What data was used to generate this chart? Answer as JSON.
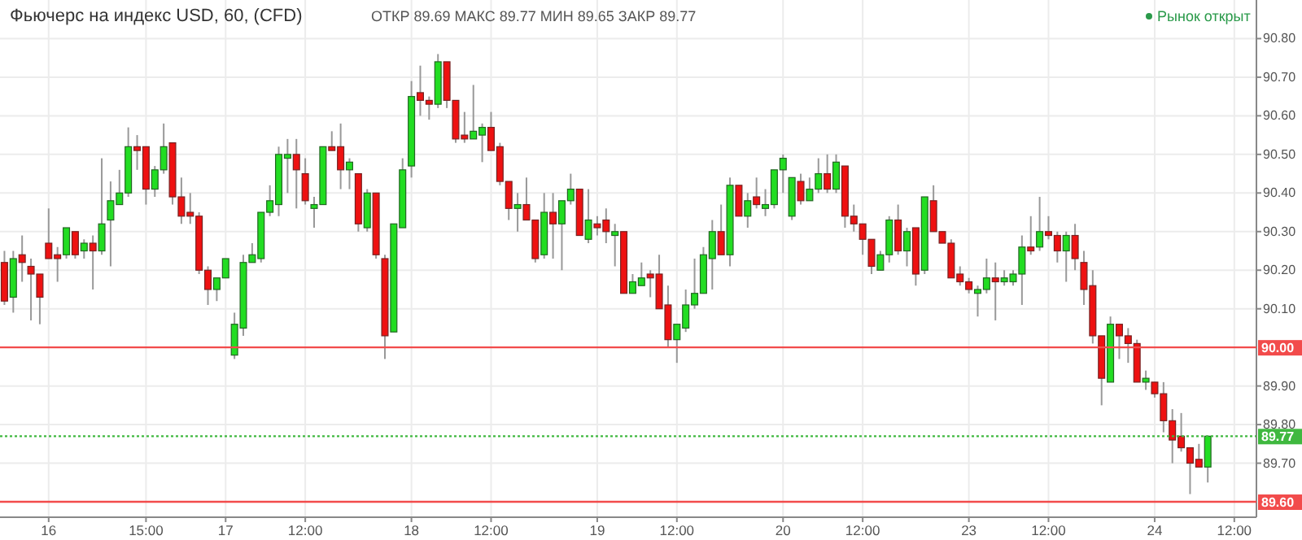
{
  "chart_data": {
    "type": "candlestick",
    "title": "Фьючерс на индекс USD, 60, (CFD)",
    "subtitle": "ОТКР 89.69 МАКС 89.77 МИН 89.65 ЗАКР 89.77",
    "annotations": [
      "Рынок открыт"
    ],
    "categories": [
      null,
      null,
      null,
      null,
      null,
      "16",
      null,
      null,
      null,
      null,
      null,
      null,
      null,
      null,
      null,
      null,
      "15:00",
      null,
      null,
      null,
      null,
      null,
      null,
      null,
      null,
      "17",
      null,
      null,
      null,
      null,
      null,
      null,
      null,
      null,
      "12:00",
      null,
      null,
      null,
      null,
      null,
      null,
      null,
      null,
      null,
      null,
      null,
      "18",
      null,
      null,
      null,
      null,
      null,
      null,
      null,
      null,
      "12:00",
      null,
      null,
      null,
      null,
      null,
      null,
      null,
      null,
      null,
      null,
      null,
      "19",
      null,
      null,
      null,
      null,
      null,
      null,
      null,
      null,
      "12:00",
      null,
      null,
      null,
      null,
      null,
      null,
      null,
      null,
      null,
      null,
      null,
      "20",
      null,
      null,
      null,
      null,
      null,
      null,
      null,
      null,
      "12:00",
      null,
      null,
      null,
      null,
      null,
      null,
      null,
      null,
      null,
      null,
      null,
      "23",
      null,
      null,
      null,
      null,
      null,
      null,
      null,
      null,
      "12:00",
      null,
      null,
      null,
      null,
      null,
      null,
      null,
      null,
      null,
      null,
      null,
      "24",
      null,
      null,
      null,
      null,
      null,
      null,
      null,
      null,
      "12:00",
      null,
      null
    ],
    "ohlc": [
      [
        90.22,
        90.25,
        90.11,
        90.12
      ],
      [
        90.13,
        90.25,
        90.09,
        90.23
      ],
      [
        90.24,
        90.29,
        90.17,
        90.22
      ],
      [
        90.21,
        90.23,
        90.07,
        90.19
      ],
      [
        90.19,
        90.19,
        90.06,
        90.13
      ],
      [
        90.27,
        90.36,
        90.23,
        90.23
      ],
      [
        90.24,
        90.26,
        90.17,
        90.23
      ],
      [
        90.24,
        90.31,
        90.23,
        90.31
      ],
      [
        90.3,
        90.3,
        90.23,
        90.24
      ],
      [
        90.25,
        90.28,
        90.23,
        90.27
      ],
      [
        90.27,
        90.29,
        90.15,
        90.25
      ],
      [
        90.25,
        90.49,
        90.24,
        90.32
      ],
      [
        90.33,
        90.43,
        90.21,
        90.38
      ],
      [
        90.37,
        90.46,
        90.37,
        90.4
      ],
      [
        90.4,
        90.57,
        90.39,
        90.52
      ],
      [
        90.52,
        90.55,
        90.46,
        90.51
      ],
      [
        90.52,
        90.52,
        90.37,
        90.41
      ],
      [
        90.41,
        90.47,
        90.39,
        90.46
      ],
      [
        90.46,
        90.58,
        90.45,
        90.52
      ],
      [
        90.53,
        90.53,
        90.37,
        90.39
      ],
      [
        90.39,
        90.44,
        90.32,
        90.34
      ],
      [
        90.35,
        90.4,
        90.32,
        90.34
      ],
      [
        90.34,
        90.35,
        90.19,
        90.2
      ],
      [
        90.2,
        90.21,
        90.11,
        90.15
      ],
      [
        90.15,
        90.18,
        90.12,
        90.18
      ],
      [
        90.18,
        90.23,
        90.18,
        90.23
      ],
      [
        89.98,
        90.09,
        89.97,
        90.06
      ],
      [
        90.05,
        90.24,
        90.03,
        90.22
      ],
      [
        90.22,
        90.27,
        90.22,
        90.24
      ],
      [
        90.23,
        90.35,
        90.22,
        90.35
      ],
      [
        90.35,
        90.42,
        90.34,
        90.38
      ],
      [
        90.37,
        90.52,
        90.34,
        90.5
      ],
      [
        90.49,
        90.54,
        90.4,
        90.5
      ],
      [
        90.5,
        90.54,
        90.36,
        90.46
      ],
      [
        90.45,
        90.49,
        90.37,
        90.38
      ],
      [
        90.36,
        90.39,
        90.31,
        90.37
      ],
      [
        90.37,
        90.52,
        90.37,
        90.52
      ],
      [
        90.52,
        90.56,
        90.51,
        90.51
      ],
      [
        90.52,
        90.58,
        90.41,
        90.46
      ],
      [
        90.46,
        90.49,
        90.41,
        90.48
      ],
      [
        90.45,
        90.45,
        90.3,
        90.32
      ],
      [
        90.31,
        90.41,
        90.3,
        90.4
      ],
      [
        90.4,
        90.4,
        90.23,
        90.24
      ],
      [
        90.23,
        90.24,
        89.97,
        90.03
      ],
      [
        90.04,
        90.32,
        90.04,
        90.32
      ],
      [
        90.31,
        90.49,
        90.31,
        90.46
      ],
      [
        90.47,
        90.69,
        90.44,
        90.65
      ],
      [
        90.66,
        90.73,
        90.6,
        90.64
      ],
      [
        90.64,
        90.65,
        90.59,
        90.63
      ],
      [
        90.63,
        90.76,
        90.62,
        90.74
      ],
      [
        90.74,
        90.74,
        90.62,
        90.64
      ],
      [
        90.64,
        90.64,
        90.53,
        90.54
      ],
      [
        90.55,
        90.61,
        90.53,
        90.54
      ],
      [
        90.54,
        90.68,
        90.54,
        90.56
      ],
      [
        90.55,
        90.58,
        90.48,
        90.57
      ],
      [
        90.57,
        90.61,
        90.51,
        90.51
      ],
      [
        90.52,
        90.53,
        90.42,
        90.43
      ],
      [
        90.43,
        90.43,
        90.33,
        90.36
      ],
      [
        90.36,
        90.4,
        90.3,
        90.37
      ],
      [
        90.37,
        90.44,
        90.33,
        90.33
      ],
      [
        90.33,
        90.33,
        90.22,
        90.23
      ],
      [
        90.24,
        90.4,
        90.23,
        90.35
      ],
      [
        90.35,
        90.4,
        90.23,
        90.32
      ],
      [
        90.32,
        90.38,
        90.2,
        90.38
      ],
      [
        90.38,
        90.45,
        90.37,
        90.41
      ],
      [
        90.41,
        90.41,
        90.29,
        90.29
      ],
      [
        90.28,
        90.41,
        90.27,
        90.33
      ],
      [
        90.32,
        90.34,
        90.29,
        90.31
      ],
      [
        90.33,
        90.36,
        90.27,
        90.3
      ],
      [
        90.29,
        90.32,
        90.21,
        90.3
      ],
      [
        90.3,
        90.3,
        90.14,
        90.14
      ],
      [
        90.14,
        90.19,
        90.14,
        90.17
      ],
      [
        90.16,
        90.22,
        90.16,
        90.18
      ],
      [
        90.19,
        90.2,
        90.13,
        90.18
      ],
      [
        90.19,
        90.24,
        90.1,
        90.1
      ],
      [
        90.11,
        90.16,
        90.0,
        90.02
      ],
      [
        90.02,
        90.06,
        89.96,
        90.06
      ],
      [
        90.05,
        90.15,
        90.04,
        90.11
      ],
      [
        90.11,
        90.23,
        90.1,
        90.14
      ],
      [
        90.14,
        90.26,
        90.14,
        90.24
      ],
      [
        90.23,
        90.33,
        90.15,
        90.3
      ],
      [
        90.3,
        90.37,
        90.24,
        90.24
      ],
      [
        90.24,
        90.44,
        90.21,
        90.42
      ],
      [
        90.42,
        90.42,
        90.34,
        90.34
      ],
      [
        90.34,
        90.4,
        90.31,
        90.38
      ],
      [
        90.39,
        90.44,
        90.36,
        90.37
      ],
      [
        90.36,
        90.41,
        90.34,
        90.37
      ],
      [
        90.37,
        90.46,
        90.36,
        90.46
      ],
      [
        90.46,
        90.5,
        90.4,
        90.49
      ],
      [
        90.34,
        90.44,
        90.33,
        90.44
      ],
      [
        90.43,
        90.45,
        90.37,
        90.38
      ],
      [
        90.38,
        90.44,
        90.38,
        90.41
      ],
      [
        90.41,
        90.49,
        90.4,
        90.45
      ],
      [
        90.45,
        90.5,
        90.4,
        90.41
      ],
      [
        90.41,
        90.5,
        90.4,
        90.48
      ],
      [
        90.47,
        90.47,
        90.31,
        90.34
      ],
      [
        90.34,
        90.37,
        90.3,
        90.32
      ],
      [
        90.32,
        90.32,
        90.24,
        90.28
      ],
      [
        90.28,
        90.28,
        90.19,
        90.21
      ],
      [
        90.2,
        90.25,
        90.2,
        90.24
      ],
      [
        90.24,
        90.34,
        90.22,
        90.33
      ],
      [
        90.33,
        90.37,
        90.24,
        90.25
      ],
      [
        90.25,
        90.31,
        90.21,
        90.3
      ],
      [
        90.31,
        90.31,
        90.16,
        90.19
      ],
      [
        90.2,
        90.39,
        90.19,
        90.39
      ],
      [
        90.38,
        90.42,
        90.3,
        90.3
      ],
      [
        90.3,
        90.3,
        90.27,
        90.27
      ],
      [
        90.27,
        90.28,
        90.18,
        90.18
      ],
      [
        90.19,
        90.21,
        90.16,
        90.17
      ],
      [
        90.17,
        90.18,
        90.14,
        90.15
      ],
      [
        90.14,
        90.16,
        90.08,
        90.15
      ],
      [
        90.15,
        90.23,
        90.14,
        90.18
      ],
      [
        90.18,
        90.22,
        90.07,
        90.17
      ],
      [
        90.17,
        90.2,
        90.16,
        90.18
      ],
      [
        90.17,
        90.2,
        90.16,
        90.19
      ],
      [
        90.19,
        90.29,
        90.11,
        90.26
      ],
      [
        90.26,
        90.34,
        90.24,
        90.25
      ],
      [
        90.26,
        90.39,
        90.25,
        90.3
      ],
      [
        90.3,
        90.34,
        90.28,
        90.29
      ],
      [
        90.29,
        90.3,
        90.22,
        90.25
      ],
      [
        90.25,
        90.3,
        90.17,
        90.29
      ],
      [
        90.29,
        90.32,
        90.2,
        90.23
      ],
      [
        90.22,
        90.25,
        90.11,
        90.15
      ],
      [
        90.16,
        90.2,
        90.01,
        90.03
      ],
      [
        90.03,
        90.03,
        89.85,
        89.92
      ],
      [
        89.91,
        90.08,
        89.91,
        90.06
      ],
      [
        90.06,
        90.06,
        89.97,
        90.03
      ],
      [
        90.03,
        90.05,
        89.96,
        90.01
      ],
      [
        90.01,
        90.02,
        89.91,
        89.91
      ],
      [
        89.91,
        89.94,
        89.89,
        89.92
      ],
      [
        89.91,
        89.91,
        89.87,
        89.88
      ],
      [
        89.88,
        89.91,
        89.78,
        89.81
      ],
      [
        89.81,
        89.84,
        89.7,
        89.76
      ],
      [
        89.77,
        89.83,
        89.73,
        89.74
      ],
      [
        89.74,
        89.74,
        89.62,
        89.7
      ],
      [
        89.71,
        89.75,
        89.69,
        89.69
      ],
      [
        89.69,
        89.77,
        89.65,
        89.77
      ],
      null,
      null,
      null,
      null,
      null
    ],
    "ylim": [
      89.56,
      90.9
    ],
    "yticks": [
      {
        "value": 89.7,
        "label": "89.70"
      },
      {
        "value": 89.8,
        "label": "89.80"
      },
      {
        "value": 89.9,
        "label": "89.90"
      },
      {
        "value": 90.1,
        "label": "90.10"
      },
      {
        "value": 90.2,
        "label": "90.20"
      },
      {
        "value": 90.3,
        "label": "90.30"
      },
      {
        "value": 90.4,
        "label": "90.40"
      },
      {
        "value": 90.5,
        "label": "90.50"
      },
      {
        "value": 90.6,
        "label": "90.60"
      },
      {
        "value": 90.7,
        "label": "90.70"
      },
      {
        "value": 90.8,
        "label": "90.80"
      }
    ],
    "grid": true,
    "ref_lines": [
      {
        "axis": "y",
        "value": 90.0,
        "label": "90.00",
        "color": "#f24b4b"
      },
      {
        "axis": "y",
        "value": 89.6,
        "label": "89.60",
        "color": "#f24b4b"
      },
      {
        "axis": "y",
        "value": 89.77,
        "label": "89.77",
        "color": "#3fb83f",
        "line_style": "dotted"
      }
    ]
  }
}
